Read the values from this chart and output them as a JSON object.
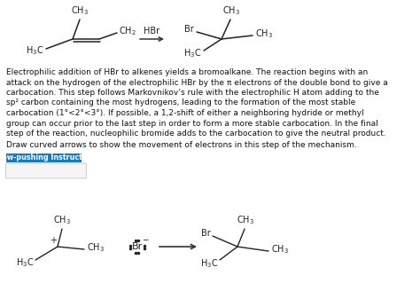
{
  "background_color": "#ffffff",
  "body_text_lines": [
    "Electrophilic addition of HBr to alkenes yields a bromoalkane. The reaction begins with an",
    "attack on the hydrogen of the electrophilic HBr by the π electrons of the double bond to give a",
    "carbocation. This step follows Markovnikov’s rule with the electrophilic H atom adding to the",
    "sp² carbon containing the most hydrogens, leading to the formation of the most stable",
    "carbocation (1°<2°<3°). If possible, a 1,2-shift of either a neighboring hydride or methyl",
    "group can occur prior to the last step in order to form a more stable carbocation. In the final",
    "step of the reaction, nucleophilic bromide adds to the carbocation to give the neutral product."
  ],
  "draw_text": "Draw curved arrows to show the movement of electrons in this step of the mechanism.",
  "button_text": "Arrow-pushing Instructions",
  "button_bg": "#1a7abf",
  "button_text_color": "#ffffff",
  "fig_width": 4.74,
  "fig_height": 3.37,
  "dpi": 100
}
